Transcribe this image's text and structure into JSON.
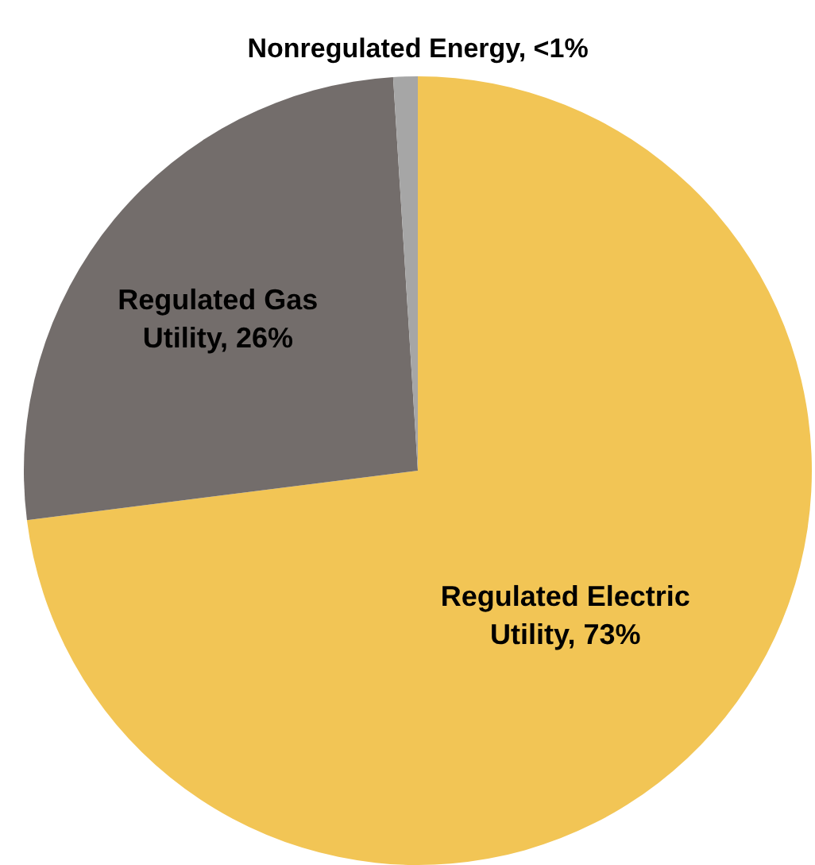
{
  "chart_data": {
    "type": "pie",
    "categories": [
      "Regulated Electric Utility",
      "Regulated Gas Utility",
      "Nonregulated Energy"
    ],
    "values": [
      73,
      26,
      1
    ],
    "value_labels": [
      "73%",
      "26%",
      "<1%"
    ],
    "colors": [
      "#f2c555",
      "#736d6b",
      "#a6a6a6"
    ]
  }
}
